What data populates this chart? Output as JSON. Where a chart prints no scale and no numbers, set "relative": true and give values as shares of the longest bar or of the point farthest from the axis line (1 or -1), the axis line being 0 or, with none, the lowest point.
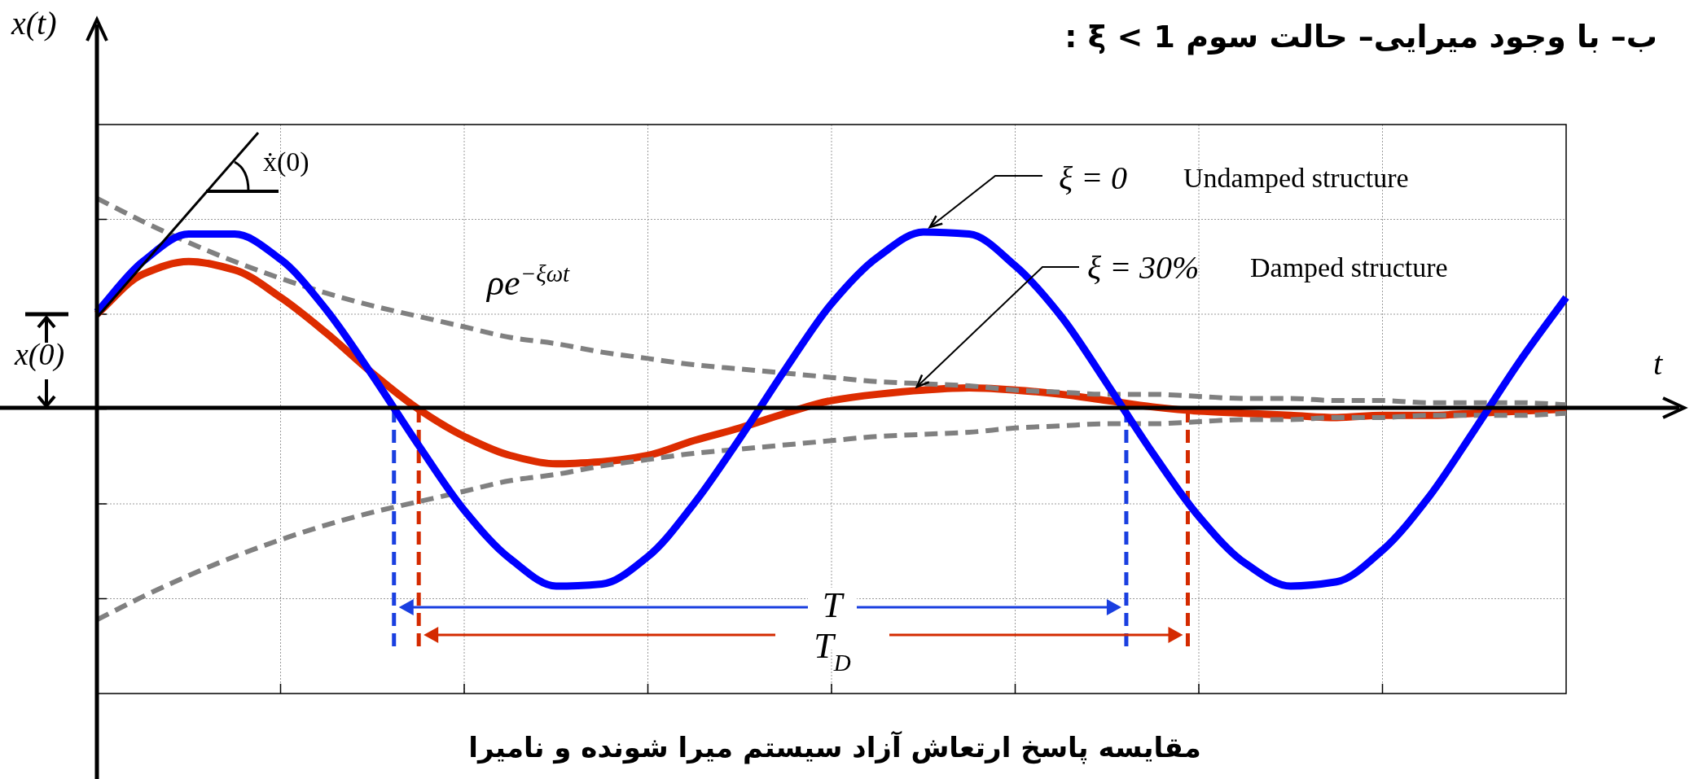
{
  "chart_data": {
    "type": "line",
    "relative": true,
    "grid": true,
    "title": "ب– با وجود میرایی– حالت سوم ξ < 1 :",
    "xlabel": "t",
    "ylabel": "x(t)",
    "categories": [
      null,
      null,
      null,
      null,
      null,
      null,
      null,
      null,
      null,
      null,
      null,
      null,
      null,
      null,
      null,
      null,
      null,
      null,
      null,
      null,
      null,
      null,
      null,
      null,
      null,
      null,
      null,
      null,
      null,
      null,
      null,
      null,
      null
    ],
    "series": [
      {
        "color": "#dd2c00",
        "line_style": "solid",
        "values": [
          0.45,
          0.64,
          0.7,
          0.66,
          0.53,
          0.36,
          0.17,
          0,
          -0.13,
          -0.22,
          -0.26,
          -0.25,
          -0.22,
          -0.15,
          -0.09,
          -0.02,
          0.04,
          0.07,
          0.09,
          0.1,
          0.09,
          0.07,
          0.04,
          0.01,
          -0.01,
          -0.02,
          -0.03,
          -0.04,
          -0.03,
          -0.03,
          -0.02,
          -0.01,
          0.0
        ]
      },
      {
        "color": "#808080",
        "line_style": "dashed",
        "values": [
          1.0,
          0.89,
          0.79,
          0.7,
          0.62,
          0.55,
          0.49,
          0.44,
          0.39,
          0.34,
          0.31,
          0.27,
          0.24,
          0.21,
          0.19,
          0.17,
          0.15,
          0.13,
          0.12,
          0.11,
          0.09,
          0.08,
          0.07,
          0.07,
          0.06,
          0.05,
          0.05,
          0.04,
          0.04,
          0.03,
          0.03,
          0.03,
          0.02
        ]
      },
      {
        "color": "#808080",
        "line_style": "dashed",
        "values": [
          -1.0,
          -0.89,
          -0.79,
          -0.7,
          -0.62,
          -0.55,
          -0.49,
          -0.44,
          -0.39,
          -0.34,
          -0.31,
          -0.27,
          -0.24,
          -0.21,
          -0.19,
          -0.17,
          -0.15,
          -0.13,
          -0.12,
          -0.11,
          -0.09,
          -0.08,
          -0.07,
          -0.07,
          -0.06,
          -0.05,
          -0.05,
          -0.04,
          -0.04,
          -0.03,
          -0.03,
          -0.03,
          -0.02
        ]
      },
      {
        "color": "#0000ff",
        "line_style": "solid",
        "values": [
          0.46,
          0.7,
          0.83,
          0.83,
          0.71,
          0.47,
          0.16,
          -0.17,
          -0.48,
          -0.71,
          -0.84,
          -0.83,
          -0.7,
          -0.45,
          -0.14,
          0.19,
          0.5,
          0.72,
          0.84,
          0.83,
          0.68,
          0.44,
          0.12,
          -0.21,
          -0.51,
          -0.73,
          -0.84,
          -0.82,
          -0.67,
          -0.42,
          -0.1,
          0.23,
          0.53
        ]
      }
    ],
    "annotations": [
      "ẋ(0)",
      "ρe$^{−ξωt}$",
      "ξ = 0",
      "Undamped structure",
      "ξ = 30%",
      "Damped structure",
      "x(0)",
      "T",
      "T$_{D}$",
      "مقایسه پاسخ ارتعاش آزاد سیستم میرا شونده و نامیرا"
    ]
  }
}
